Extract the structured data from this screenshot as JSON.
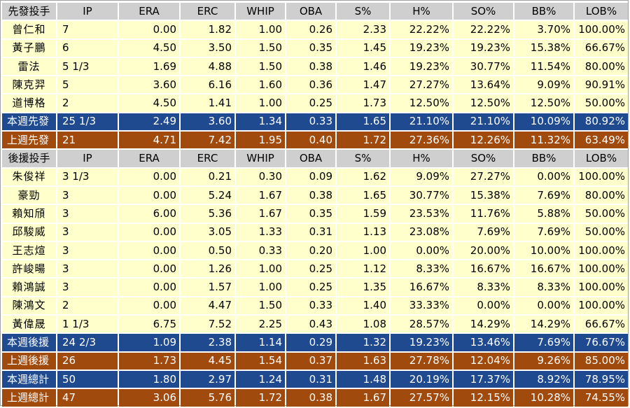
{
  "starters": {
    "header": [
      "先發投手",
      "IP",
      "ERA",
      "ERC",
      "WHIP",
      "OBA",
      "S%",
      "H%",
      "SO%",
      "BB%",
      "LOB%"
    ],
    "rows": [
      [
        "曾仁和",
        "7",
        "0.00",
        "1.82",
        "1.00",
        "0.26",
        "2.33",
        "22.22%",
        "22.22%",
        "3.70%",
        "100.00%"
      ],
      [
        "黃子鵬",
        "6",
        "4.50",
        "3.50",
        "1.50",
        "0.35",
        "1.45",
        "19.23%",
        "19.23%",
        "15.38%",
        "66.67%"
      ],
      [
        "雷法",
        "5 1/3",
        "1.69",
        "4.88",
        "1.50",
        "0.38",
        "1.46",
        "19.23%",
        "30.77%",
        "11.54%",
        "80.00%"
      ],
      [
        "陳克羿",
        "5",
        "3.60",
        "6.16",
        "1.60",
        "0.36",
        "1.47",
        "27.27%",
        "13.64%",
        "9.09%",
        "90.91%"
      ],
      [
        "道博格",
        "2",
        "4.50",
        "1.41",
        "1.00",
        "0.25",
        "1.73",
        "12.50%",
        "12.50%",
        "12.50%",
        "50.00%"
      ]
    ],
    "this_week": [
      "本週先發",
      "25 1/3",
      "2.49",
      "3.60",
      "1.34",
      "0.33",
      "1.65",
      "21.10%",
      "21.10%",
      "10.09%",
      "80.92%"
    ],
    "last_week": [
      "上週先發",
      "21",
      "4.71",
      "7.42",
      "1.95",
      "0.40",
      "1.72",
      "27.36%",
      "12.26%",
      "11.32%",
      "63.49%"
    ]
  },
  "relievers": {
    "header": [
      "後援投手",
      "IP",
      "ERA",
      "ERC",
      "WHIP",
      "OBA",
      "S%",
      "H%",
      "SO%",
      "BB%",
      "LOB%"
    ],
    "rows": [
      [
        "朱俊祥",
        "3 1/3",
        "0.00",
        "0.21",
        "0.30",
        "0.09",
        "1.62",
        "9.09%",
        "27.27%",
        "0.00%",
        "100.00%"
      ],
      [
        "豪勁",
        "3",
        "0.00",
        "5.24",
        "1.67",
        "0.38",
        "1.65",
        "30.77%",
        "15.38%",
        "7.69%",
        "80.00%"
      ],
      [
        "賴知頎",
        "3",
        "6.00",
        "5.36",
        "1.67",
        "0.35",
        "1.59",
        "23.53%",
        "11.76%",
        "5.88%",
        "50.00%"
      ],
      [
        "邱駿威",
        "3",
        "0.00",
        "3.05",
        "1.33",
        "0.31",
        "1.13",
        "23.08%",
        "7.69%",
        "7.69%",
        "50.00%"
      ],
      [
        "王志煊",
        "3",
        "0.00",
        "0.50",
        "0.33",
        "0.20",
        "1.00",
        "0.00%",
        "20.00%",
        "10.00%",
        "100.00%"
      ],
      [
        "許峻暘",
        "3",
        "0.00",
        "1.26",
        "1.00",
        "0.25",
        "1.12",
        "8.33%",
        "16.67%",
        "16.67%",
        "100.00%"
      ],
      [
        "賴鴻誠",
        "3",
        "0.00",
        "1.57",
        "1.00",
        "0.25",
        "1.35",
        "16.67%",
        "8.33%",
        "8.33%",
        "100.00%"
      ],
      [
        "陳鴻文",
        "2",
        "0.00",
        "4.47",
        "1.50",
        "0.33",
        "1.40",
        "33.33%",
        "0.00%",
        "0.00%",
        "100.00%"
      ],
      [
        "黃偉晟",
        "1 1/3",
        "6.75",
        "7.52",
        "2.25",
        "0.43",
        "1.08",
        "28.57%",
        "14.29%",
        "14.29%",
        "66.67%"
      ]
    ],
    "this_week": [
      "本週後援",
      "24 2/3",
      "1.09",
      "2.38",
      "1.14",
      "0.29",
      "1.32",
      "19.23%",
      "13.46%",
      "7.69%",
      "76.67%"
    ],
    "last_week": [
      "上週後援",
      "26",
      "1.73",
      "4.45",
      "1.54",
      "0.37",
      "1.63",
      "27.78%",
      "12.04%",
      "9.26%",
      "85.00%"
    ]
  },
  "totals": {
    "this_week": [
      "本週總計",
      "50",
      "1.80",
      "2.97",
      "1.24",
      "0.31",
      "1.48",
      "20.19%",
      "17.37%",
      "8.92%",
      "78.95%"
    ],
    "last_week": [
      "上週總計",
      "47",
      "3.06",
      "5.76",
      "1.72",
      "0.38",
      "1.67",
      "27.57%",
      "12.15%",
      "10.28%",
      "74.55%"
    ]
  },
  "colors": {
    "header_bg": "#cfcfcf",
    "row_bg": "#ffffcc",
    "this_week_bg": "#1f4a8f",
    "last_week_bg": "#a04b0d"
  }
}
